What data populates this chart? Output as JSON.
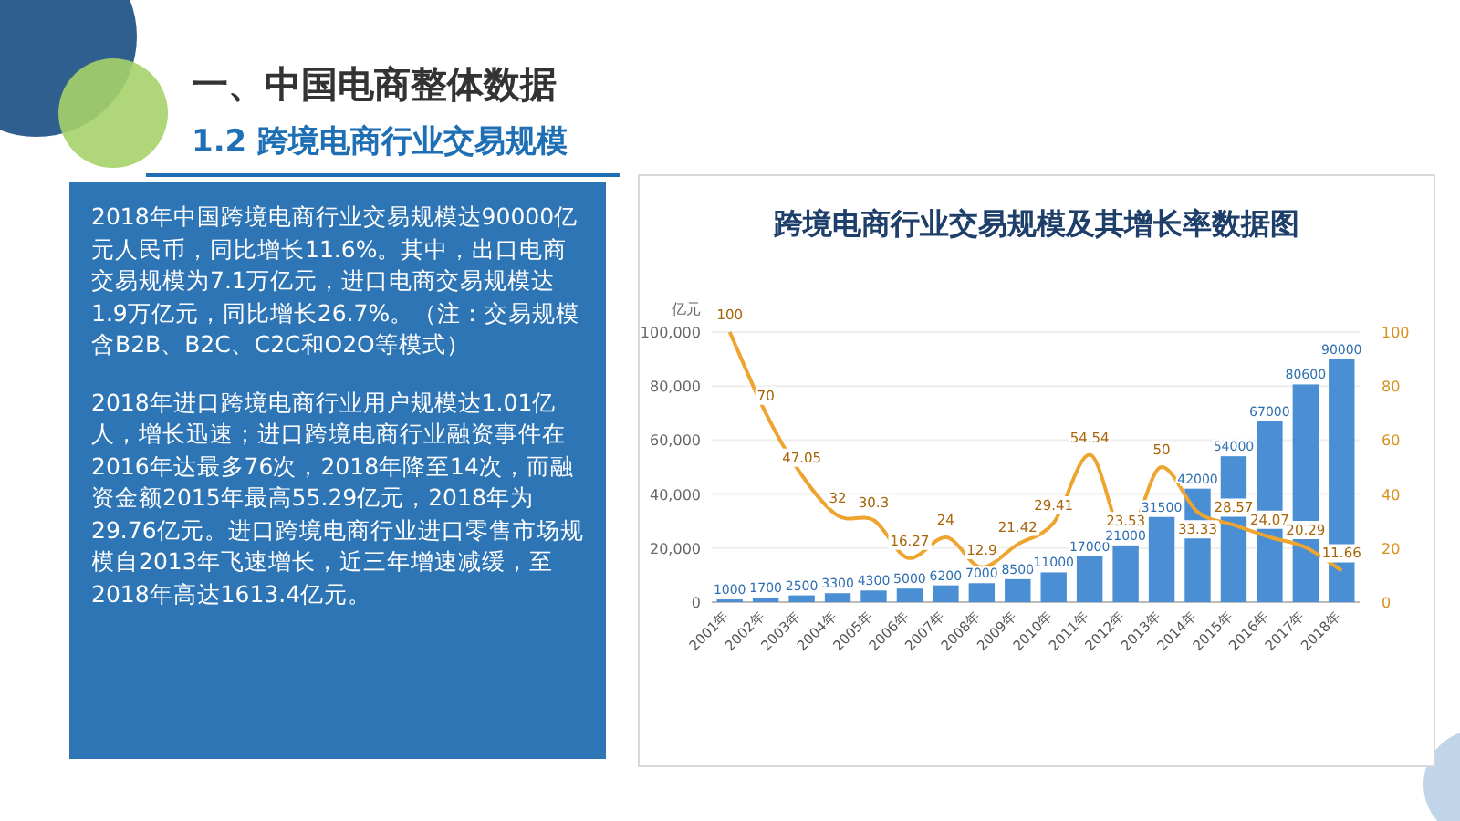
{
  "chart_data": {
    "type": "bar",
    "title": "跨境电商行业交易规模及其增长率数据图",
    "ylabel": "亿元",
    "annotations": [
      "一、中国电商整体数据",
      "1.2 跨境电商行业交易规模",
      "2018年中国跨境电商行业交易规模达90000亿元人民币，同比增长11.6%。其中，出口电商交易规模为7.1万亿元，进口电商交易规模达1.9万亿元，同比增长26.7%。（注：交易规模含B2B、B2C、C2C和O2O等模式）",
      "2018年进口跨境电商行业用户规模达1.01亿人，增长迅速；进口跨境电商行业融资事件在2016年达最多76次，2018年降至14次，而融资金额2015年最高55.29亿元，2018年为29.76亿元。进口跨境电商行业进口零售市场规模自2013年飞速增长，近三年增速减缓，至2018年高达1613.4亿元。"
    ],
    "categories": [
      "2001年",
      "2002年",
      "2003年",
      "2004年",
      "2005年",
      "2006年",
      "2007年",
      "2008年",
      "2009年",
      "2010年",
      "2011年",
      "2012年",
      "2013年",
      "2014年",
      "2015年",
      "2016年",
      "2017年",
      "2018年"
    ],
    "series": [
      {
        "type": "bar",
        "color": "#4a8fd4",
        "values": [
          1000,
          1700,
          2500,
          3300,
          4300,
          5000,
          6200,
          7000,
          8500,
          11000,
          17000,
          21000,
          31500,
          42000,
          54000,
          67000,
          80600,
          90000
        ]
      },
      {
        "type": "line",
        "axis": "y2",
        "color": "#eea530",
        "values": [
          100,
          70,
          47.05,
          32,
          30.3,
          16.27,
          24,
          12.9,
          21.42,
          29.41,
          54.54,
          23.53,
          50,
          33.33,
          28.57,
          24.07,
          20.29,
          11.66
        ]
      }
    ],
    "ylim": [
      0,
      100000
    ],
    "yticks": [
      0,
      {
        "value": 20000,
        "label": "20,000"
      },
      {
        "value": 40000,
        "label": "40,000"
      },
      {
        "value": 60000,
        "label": "60,000"
      },
      {
        "value": 80000,
        "label": "80,000"
      },
      {
        "value": 100000,
        "label": "100,000"
      }
    ],
    "y2lim": [
      0,
      100
    ],
    "y2ticks": [
      0,
      20,
      40,
      60,
      80,
      100
    ],
    "grid": "y",
    "data_labels": true,
    "line_style": "solid"
  }
}
